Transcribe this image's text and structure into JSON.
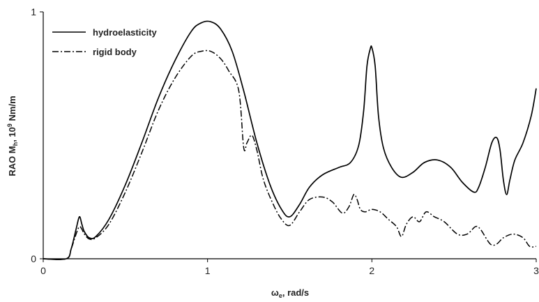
{
  "chart_data": {
    "type": "line",
    "title": "",
    "xlabel": {
      "main": "ω",
      "sub": "e",
      "rest": ", rad/s"
    },
    "ylabel": {
      "prefix": "RAO M",
      "sub": "h",
      "mid": ", 10",
      "sup": "9",
      "suffix": " Nm/m"
    },
    "xlim": [
      0,
      3
    ],
    "ylim": [
      0,
      1
    ],
    "xticks": [
      0,
      1,
      2,
      3
    ],
    "yticks": [
      0,
      1
    ],
    "grid": false,
    "legend_position": "top-left",
    "series": [
      {
        "name": "hydroelasticity",
        "style": "solid",
        "color": "#000000",
        "x": [
          0,
          0.14,
          0.17,
          0.2,
          0.22,
          0.235,
          0.25,
          0.28,
          0.32,
          0.4,
          0.5,
          0.6,
          0.7,
          0.8,
          0.9,
          0.96,
          1.02,
          1.08,
          1.15,
          1.22,
          1.3,
          1.38,
          1.45,
          1.5,
          1.56,
          1.62,
          1.7,
          1.8,
          1.87,
          1.92,
          1.95,
          1.97,
          1.99,
          2.0,
          2.02,
          2.04,
          2.07,
          2.12,
          2.18,
          2.25,
          2.32,
          2.4,
          2.48,
          2.55,
          2.62,
          2.65,
          2.69,
          2.73,
          2.76,
          2.78,
          2.8,
          2.82,
          2.84,
          2.87,
          2.92,
          2.97,
          3.0
        ],
        "y": [
          0,
          0,
          0.04,
          0.12,
          0.17,
          0.14,
          0.11,
          0.085,
          0.09,
          0.16,
          0.3,
          0.47,
          0.65,
          0.8,
          0.92,
          0.955,
          0.96,
          0.93,
          0.84,
          0.68,
          0.47,
          0.3,
          0.2,
          0.17,
          0.22,
          0.29,
          0.34,
          0.37,
          0.39,
          0.46,
          0.6,
          0.78,
          0.85,
          0.855,
          0.78,
          0.58,
          0.45,
          0.37,
          0.33,
          0.35,
          0.39,
          0.4,
          0.37,
          0.31,
          0.27,
          0.29,
          0.37,
          0.47,
          0.49,
          0.44,
          0.32,
          0.26,
          0.32,
          0.4,
          0.47,
          0.58,
          0.69
        ]
      },
      {
        "name": "rigid body",
        "style": "dashdot",
        "color": "#000000",
        "x": [
          0,
          0.14,
          0.17,
          0.2,
          0.22,
          0.235,
          0.25,
          0.28,
          0.32,
          0.4,
          0.5,
          0.6,
          0.7,
          0.8,
          0.9,
          0.96,
          1.02,
          1.08,
          1.13,
          1.19,
          1.22,
          1.24,
          1.27,
          1.3,
          1.34,
          1.4,
          1.45,
          1.5,
          1.56,
          1.62,
          1.7,
          1.76,
          1.82,
          1.86,
          1.89,
          1.91,
          1.93,
          1.96,
          2.0,
          2.05,
          2.1,
          2.15,
          2.18,
          2.21,
          2.25,
          2.29,
          2.33,
          2.38,
          2.44,
          2.52,
          2.58,
          2.63,
          2.66,
          2.72,
          2.76,
          2.8,
          2.86,
          2.92,
          2.96,
          3.0
        ],
        "y": [
          0,
          0,
          0.04,
          0.1,
          0.13,
          0.12,
          0.1,
          0.08,
          0.085,
          0.14,
          0.27,
          0.43,
          0.6,
          0.73,
          0.82,
          0.84,
          0.84,
          0.81,
          0.76,
          0.68,
          0.45,
          0.47,
          0.5,
          0.44,
          0.32,
          0.22,
          0.16,
          0.135,
          0.19,
          0.24,
          0.25,
          0.23,
          0.185,
          0.21,
          0.26,
          0.24,
          0.2,
          0.19,
          0.2,
          0.19,
          0.16,
          0.13,
          0.09,
          0.14,
          0.17,
          0.15,
          0.19,
          0.17,
          0.15,
          0.1,
          0.1,
          0.13,
          0.12,
          0.06,
          0.06,
          0.085,
          0.1,
          0.085,
          0.05,
          0.05
        ]
      }
    ]
  }
}
